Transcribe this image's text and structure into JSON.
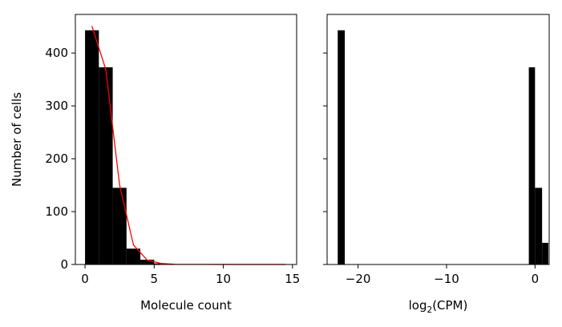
{
  "chart_data": [
    {
      "type": "bar",
      "title": "",
      "xlabel": "Molecule count",
      "ylabel": "Number of cells",
      "xlim": [
        -0.7,
        15.3
      ],
      "ylim": [
        0,
        473
      ],
      "xticks": [
        0,
        5,
        10,
        15
      ],
      "yticks": [
        0,
        100,
        200,
        300,
        400
      ],
      "bin_edges": [
        0,
        1,
        2,
        3,
        4,
        5,
        6
      ],
      "values": [
        443,
        373,
        145,
        30,
        9,
        2
      ],
      "bar_color": "#000000",
      "curve": {
        "color": "#ff0000",
        "x": [
          0.5,
          1.5,
          2.5,
          3.5,
          4.5,
          5.5,
          6.5,
          8,
          10,
          12,
          14.5
        ],
        "y": [
          451,
          369,
          150,
          37,
          8,
          2,
          0.4,
          0.2,
          0.1,
          0.1,
          0.1
        ]
      }
    },
    {
      "type": "bar",
      "title": "",
      "xlabel": "log2(CPM)",
      "xlabel_base": "log",
      "xlabel_sub": "2",
      "xlabel_tail": "(CPM)",
      "ylabel": "",
      "xlim": [
        -23.5,
        1.6
      ],
      "ylim": [
        0,
        473
      ],
      "xticks": [
        -20,
        -10,
        0
      ],
      "xtick_labels": [
        "−20",
        "−10",
        "0"
      ],
      "yticks": [
        0,
        100,
        200,
        300,
        400
      ],
      "ytick_labels_visible": false,
      "bin_edges": [
        -22.3,
        -21.5,
        -0.7,
        0.0,
        0.8,
        1.5
      ],
      "values": [
        443,
        0,
        373,
        145,
        41
      ],
      "bar_color": "#000000"
    }
  ]
}
